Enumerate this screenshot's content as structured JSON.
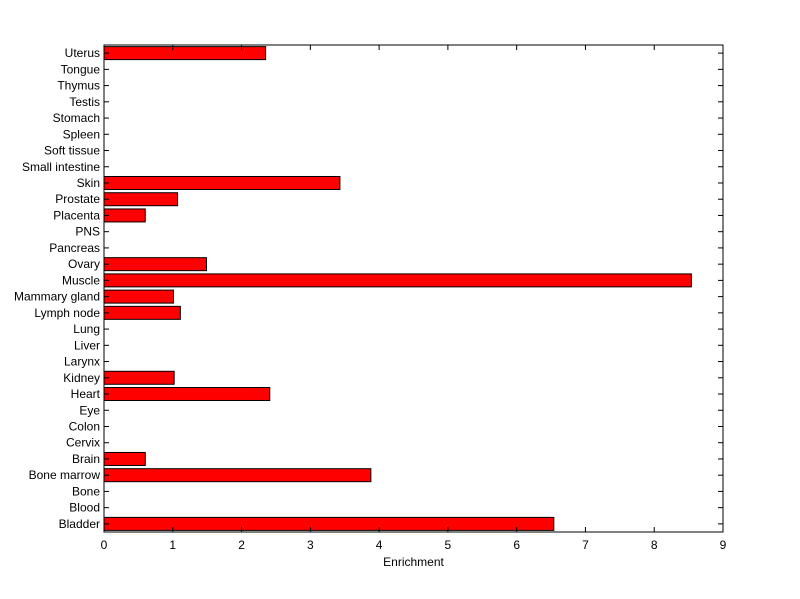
{
  "chart_data": {
    "type": "bar",
    "orientation": "horizontal",
    "title": "",
    "xlabel": "Enrichment",
    "ylabel": "",
    "xlim": [
      0,
      9
    ],
    "xticks": [
      "0",
      "1",
      "2",
      "3",
      "4",
      "5",
      "6",
      "7",
      "8",
      "9"
    ],
    "grid": false,
    "bar_color": "#ff0000",
    "categories": [
      "Uterus",
      "Tongue",
      "Thymus",
      "Testis",
      "Stomach",
      "Spleen",
      "Soft tissue",
      "Small intestine",
      "Skin",
      "Prostate",
      "Placenta",
      "PNS",
      "Pancreas",
      "Ovary",
      "Muscle",
      "Mammary gland",
      "Lymph node",
      "Lung",
      "Liver",
      "Larynx",
      "Kidney",
      "Heart",
      "Eye",
      "Colon",
      "Cervix",
      "Brain",
      "Bone marrow",
      "Bone",
      "Blood",
      "Bladder"
    ],
    "values": [
      2.35,
      0,
      0,
      0,
      0,
      0,
      0,
      0,
      3.43,
      1.07,
      0.6,
      0,
      0,
      1.49,
      8.54,
      1.01,
      1.11,
      0,
      0,
      0,
      1.02,
      2.41,
      0,
      0,
      0,
      0.6,
      3.88,
      0,
      0,
      6.54
    ]
  }
}
